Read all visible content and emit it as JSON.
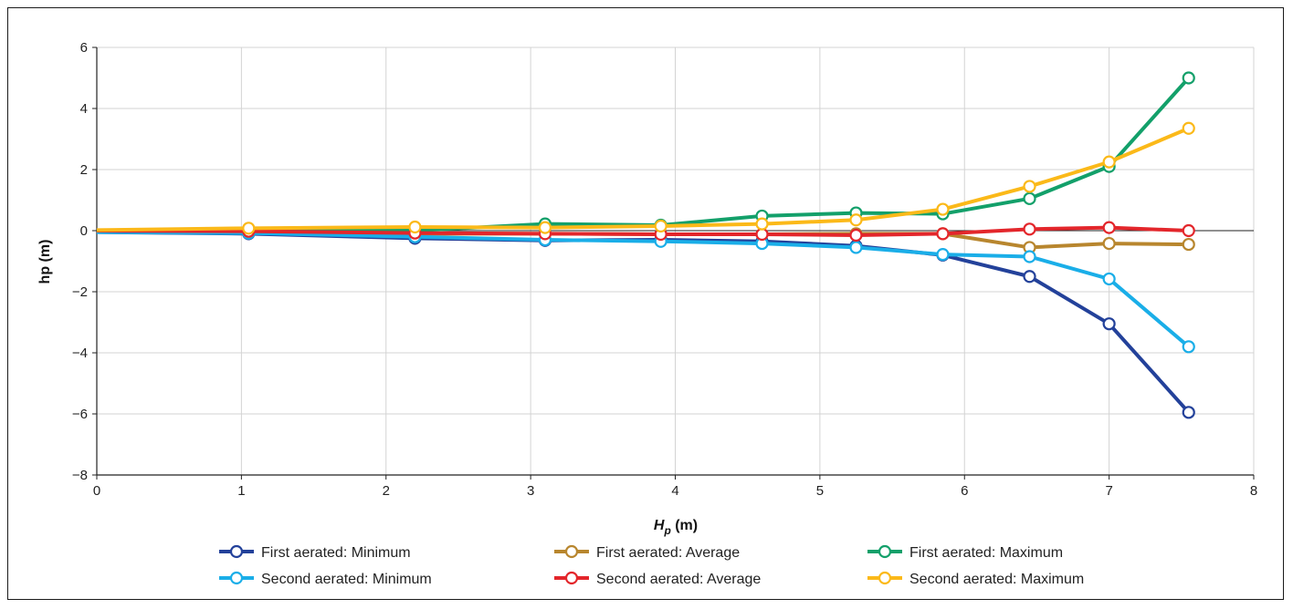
{
  "chart_data": {
    "type": "line",
    "title": "",
    "xlabel": "H",
    "xlabel_sub": "p",
    "xlabel_unit": " (m)",
    "ylabel": "hp (m)",
    "xlim": [
      0,
      8
    ],
    "ylim": [
      -8,
      6
    ],
    "x_ticks": [
      0,
      1,
      2,
      3,
      4,
      5,
      6,
      7,
      8
    ],
    "y_ticks": [
      -8,
      -6,
      -4,
      -2,
      0,
      2,
      4,
      6
    ],
    "x_tick_labels": [
      "0",
      "1",
      "2",
      "3",
      "4",
      "5",
      "6",
      "7",
      "8"
    ],
    "y_tick_labels": [
      "−8",
      "−6",
      "−4",
      "−2",
      "0",
      "2",
      "4",
      "6"
    ],
    "grid": true,
    "legend_position": "bottom",
    "x": [
      0,
      1.05,
      2.2,
      3.1,
      3.9,
      4.6,
      5.25,
      5.85,
      6.45,
      7.0,
      7.55
    ],
    "series": [
      {
        "name": "First aerated: Minimum",
        "color": "#23419a",
        "values": [
          -0.05,
          -0.1,
          -0.25,
          -0.32,
          -0.3,
          -0.35,
          -0.5,
          -0.8,
          -1.5,
          -3.05,
          -5.95
        ]
      },
      {
        "name": "First aerated: Average",
        "color": "#b8862e",
        "values": [
          0.0,
          -0.05,
          -0.1,
          -0.1,
          -0.12,
          -0.12,
          -0.1,
          -0.1,
          -0.55,
          -0.42,
          -0.45
        ]
      },
      {
        "name": "First aerated: Maximum",
        "color": "#13a06a",
        "values": [
          0.0,
          0.02,
          0.0,
          0.22,
          0.18,
          0.48,
          0.58,
          0.55,
          1.05,
          2.1,
          5.0
        ]
      },
      {
        "name": "Second aerated: Minimum",
        "color": "#1aaee8",
        "values": [
          -0.05,
          -0.08,
          -0.2,
          -0.3,
          -0.35,
          -0.42,
          -0.55,
          -0.78,
          -0.85,
          -1.58,
          -3.8
        ]
      },
      {
        "name": "Second aerated: Average",
        "color": "#e3262b",
        "values": [
          0.0,
          -0.02,
          -0.08,
          -0.1,
          -0.12,
          -0.12,
          -0.15,
          -0.1,
          0.05,
          0.1,
          0.0
        ]
      },
      {
        "name": "Second aerated: Maximum",
        "color": "#fbb919",
        "values": [
          0.02,
          0.08,
          0.12,
          0.1,
          0.15,
          0.22,
          0.35,
          0.7,
          1.45,
          2.25,
          3.35
        ]
      }
    ]
  }
}
